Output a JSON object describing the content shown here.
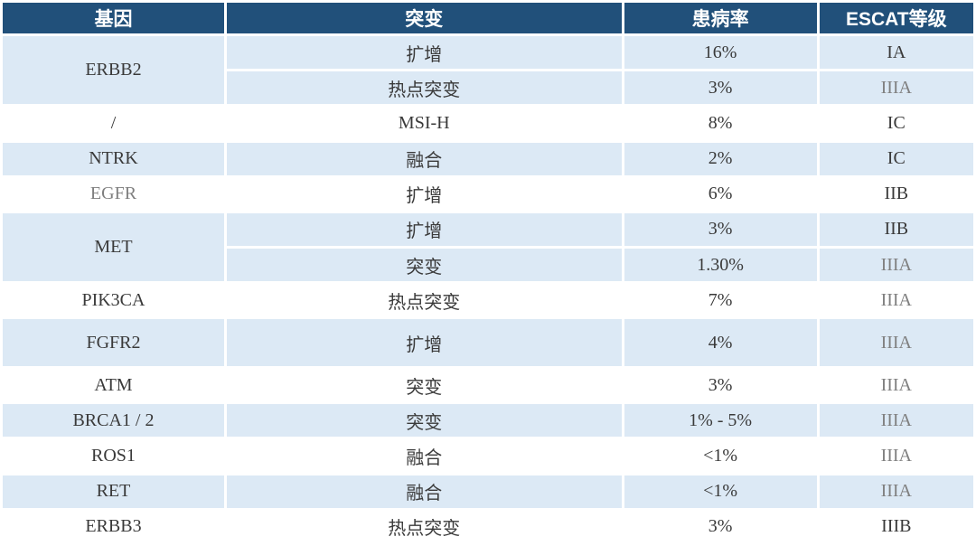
{
  "colors": {
    "header_bg": "#21507A",
    "header_text": "#FFFFFF",
    "row_stripe_bg": "#DCE9F5",
    "row_plain_bg": "#FFFFFF",
    "body_text": "#3A3A3A",
    "muted_text": "#7F7F7F"
  },
  "header": {
    "gene": "基因",
    "mutation": "突变",
    "prevalence": "患病率",
    "escat": "ESCAT等级"
  },
  "rows": [
    {
      "gene": "ERBB2",
      "mutation": "扩增",
      "prevalence": "16%",
      "escat": "IA"
    },
    {
      "gene": "",
      "mutation": "热点突变",
      "prevalence": "3%",
      "escat": "IIIA"
    },
    {
      "gene": "/",
      "mutation": "MSI-H",
      "prevalence": "8%",
      "escat": "IC"
    },
    {
      "gene": "NTRK",
      "mutation": "融合",
      "prevalence": "2%",
      "escat": "IC"
    },
    {
      "gene": "EGFR",
      "mutation": "扩增",
      "prevalence": "6%",
      "escat": "IIB"
    },
    {
      "gene": "MET",
      "mutation": "扩增",
      "prevalence": "3%",
      "escat": "IIB"
    },
    {
      "gene": "",
      "mutation": "突变",
      "prevalence": "1.30%",
      "escat": "IIIA"
    },
    {
      "gene": "PIK3CA",
      "mutation": "热点突变",
      "prevalence": "7%",
      "escat": "IIIA"
    },
    {
      "gene": "FGFR2",
      "mutation": "扩增",
      "prevalence": "4%",
      "escat": "IIIA"
    },
    {
      "gene": "ATM",
      "mutation": "突变",
      "prevalence": "3%",
      "escat": "IIIA"
    },
    {
      "gene": "BRCA1 / 2",
      "mutation": "突变",
      "prevalence": "1% - 5%",
      "escat": "IIIA"
    },
    {
      "gene": "ROS1",
      "mutation": "融合",
      "prevalence": "<1%",
      "escat": "IIIA"
    },
    {
      "gene": "RET",
      "mutation": "融合",
      "prevalence": "<1%",
      "escat": "IIIA"
    },
    {
      "gene": "ERBB3",
      "mutation": "热点突变",
      "prevalence": "3%",
      "escat": "IIIB"
    }
  ],
  "chart_data": {
    "type": "table",
    "columns": [
      "基因",
      "突变",
      "患病率",
      "ESCAT等级"
    ],
    "rows": [
      [
        "ERBB2",
        "扩增",
        "16%",
        "IA"
      ],
      [
        "ERBB2",
        "热点突变",
        "3%",
        "IIIA"
      ],
      [
        "/",
        "MSI-H",
        "8%",
        "IC"
      ],
      [
        "NTRK",
        "融合",
        "2%",
        "IC"
      ],
      [
        "EGFR",
        "扩增",
        "6%",
        "IIB"
      ],
      [
        "MET",
        "扩增",
        "3%",
        "IIB"
      ],
      [
        "MET",
        "突变",
        "1.30%",
        "IIIA"
      ],
      [
        "PIK3CA",
        "热点突变",
        "7%",
        "IIIA"
      ],
      [
        "FGFR2",
        "扩增",
        "4%",
        "IIIA"
      ],
      [
        "ATM",
        "突变",
        "3%",
        "IIIA"
      ],
      [
        "BRCA1 / 2",
        "突变",
        "1% - 5%",
        "IIIA"
      ],
      [
        "ROS1",
        "融合",
        "<1%",
        "IIIA"
      ],
      [
        "RET",
        "融合",
        "<1%",
        "IIIA"
      ],
      [
        "ERBB3",
        "热点突变",
        "3%",
        "IIIB"
      ]
    ],
    "notes": "Merged gene cells: ERBB2 spans rows 1-2, MET spans rows 6-7. Striped groups alternate light blue / white per gene. IIIA values and EGFR rendered in gray."
  }
}
